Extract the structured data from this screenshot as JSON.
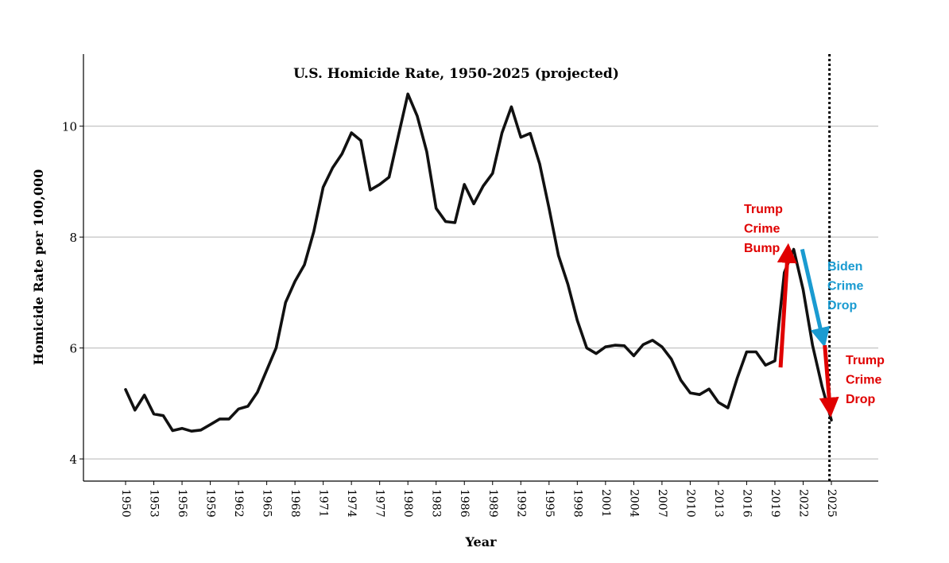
{
  "chart_data": {
    "type": "line",
    "title": "U.S. Homicide Rate, 1950-2025 (projected)",
    "xlabel": "Year",
    "ylabel": "Homicide Rate per 100,000",
    "xlim": [
      1948,
      2030
    ],
    "ylim": [
      3.6,
      11.3
    ],
    "yticks": [
      4,
      6,
      8,
      10
    ],
    "xticks": [
      1950,
      1953,
      1956,
      1959,
      1962,
      1965,
      1968,
      1971,
      1974,
      1977,
      1980,
      1983,
      1986,
      1989,
      1992,
      1995,
      1998,
      2001,
      2004,
      2007,
      2010,
      2013,
      2016,
      2019,
      2022,
      2025
    ],
    "grid": "horizontal",
    "projection_line_year": 2024.8,
    "series": [
      {
        "name": "Homicide Rate",
        "color": "#111111",
        "x": [
          1950,
          1951,
          1952,
          1953,
          1954,
          1955,
          1956,
          1957,
          1958,
          1959,
          1960,
          1961,
          1962,
          1963,
          1964,
          1965,
          1966,
          1967,
          1968,
          1969,
          1970,
          1971,
          1972,
          1973,
          1974,
          1975,
          1976,
          1977,
          1978,
          1979,
          1980,
          1981,
          1982,
          1983,
          1984,
          1985,
          1986,
          1987,
          1988,
          1989,
          1990,
          1991,
          1992,
          1993,
          1994,
          1995,
          1996,
          1997,
          1998,
          1999,
          2000,
          2001,
          2002,
          2003,
          2004,
          2005,
          2006,
          2007,
          2008,
          2009,
          2010,
          2011,
          2012,
          2013,
          2014,
          2015,
          2016,
          2017,
          2018,
          2019,
          2020,
          2021,
          2022,
          2023,
          2024,
          2025
        ],
        "values": [
          5.25,
          4.88,
          5.15,
          4.81,
          4.78,
          4.51,
          4.55,
          4.5,
          4.52,
          4.62,
          4.72,
          4.72,
          4.9,
          4.95,
          5.2,
          5.6,
          6.0,
          6.82,
          7.2,
          7.5,
          8.1,
          8.9,
          9.25,
          9.5,
          9.88,
          9.74,
          8.85,
          8.95,
          9.08,
          9.84,
          10.58,
          10.18,
          9.54,
          8.52,
          8.28,
          8.26,
          8.95,
          8.6,
          8.92,
          9.15,
          9.88,
          10.35,
          9.8,
          9.87,
          9.32,
          8.52,
          7.67,
          7.15,
          6.5,
          6.0,
          5.9,
          6.02,
          6.05,
          6.04,
          5.86,
          6.06,
          6.14,
          6.02,
          5.8,
          5.42,
          5.19,
          5.16,
          5.26,
          5.02,
          4.92,
          5.46,
          5.93,
          5.93,
          5.69,
          5.77,
          7.36,
          7.78,
          7.05,
          6.05,
          5.31,
          4.7
        ]
      }
    ],
    "annotations": [
      {
        "lines": [
          "Trump",
          "Crime",
          "Bump"
        ],
        "color": "#e00000",
        "from_x": 2019.6,
        "from_y": 5.65,
        "to_x": 2020.4,
        "to_y": 7.82
      },
      {
        "lines": [
          "Biden",
          "Crime",
          "Drop"
        ],
        "color": "#1a9bd1",
        "from_x": 2021.9,
        "from_y": 7.78,
        "to_x": 2024.2,
        "to_y": 6.08
      },
      {
        "lines": [
          "Trump",
          "Crime",
          "Drop"
        ],
        "color": "#e00000",
        "from_x": 2024.3,
        "from_y": 6.05,
        "to_x": 2024.9,
        "to_y": 4.82
      }
    ]
  }
}
